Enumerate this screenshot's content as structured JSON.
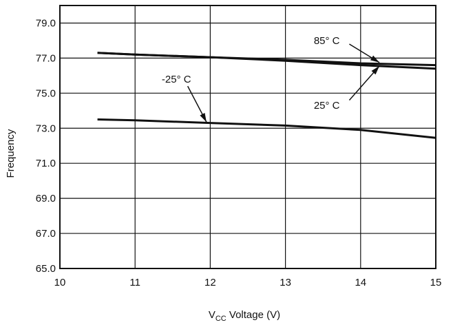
{
  "chart_data": {
    "type": "line",
    "title": "",
    "xlabel": {
      "main": "V",
      "sub": "CC",
      "rest": " Voltage (V)"
    },
    "ylabel": "Frequency",
    "xlim": [
      10,
      15
    ],
    "ylim": [
      65,
      80
    ],
    "grid": true,
    "x_ticks": [
      10,
      11,
      12,
      13,
      14,
      15
    ],
    "x_tick_labels": [
      "10",
      "11",
      "12",
      "13",
      "14",
      "15"
    ],
    "y_ticks": [
      65,
      67,
      69,
      71,
      73,
      75,
      77,
      79
    ],
    "y_tick_labels": [
      "65.0",
      "67.0",
      "69.0",
      "71.0",
      "73.0",
      "75.0",
      "77.0",
      "79.0"
    ],
    "series": [
      {
        "name": "85° C",
        "x": [
          10.5,
          11,
          12,
          13,
          14,
          15
        ],
        "y": [
          77.3,
          77.2,
          77.05,
          76.9,
          76.7,
          76.6
        ]
      },
      {
        "name": "25° C",
        "x": [
          10.5,
          11,
          12,
          13,
          14,
          15
        ],
        "y": [
          77.3,
          77.2,
          77.05,
          76.85,
          76.6,
          76.4
        ]
      },
      {
        "name": "-25° C",
        "x": [
          10.5,
          11,
          12,
          13,
          14,
          15
        ],
        "y": [
          73.5,
          73.45,
          73.3,
          73.15,
          72.9,
          72.45
        ]
      }
    ],
    "annotations": [
      {
        "text": "85° C",
        "text_at": [
          13.55,
          78.0
        ],
        "arrow_from": [
          13.85,
          77.8
        ],
        "arrow_to": [
          14.25,
          76.75
        ]
      },
      {
        "text": "25° C",
        "text_at": [
          13.55,
          74.3
        ],
        "arrow_from": [
          13.85,
          74.6
        ],
        "arrow_to": [
          14.25,
          76.55
        ]
      },
      {
        "text": "-25° C",
        "text_at": [
          11.55,
          75.8
        ],
        "arrow_from": [
          11.7,
          75.4
        ],
        "arrow_to": [
          11.95,
          73.35
        ]
      }
    ]
  }
}
